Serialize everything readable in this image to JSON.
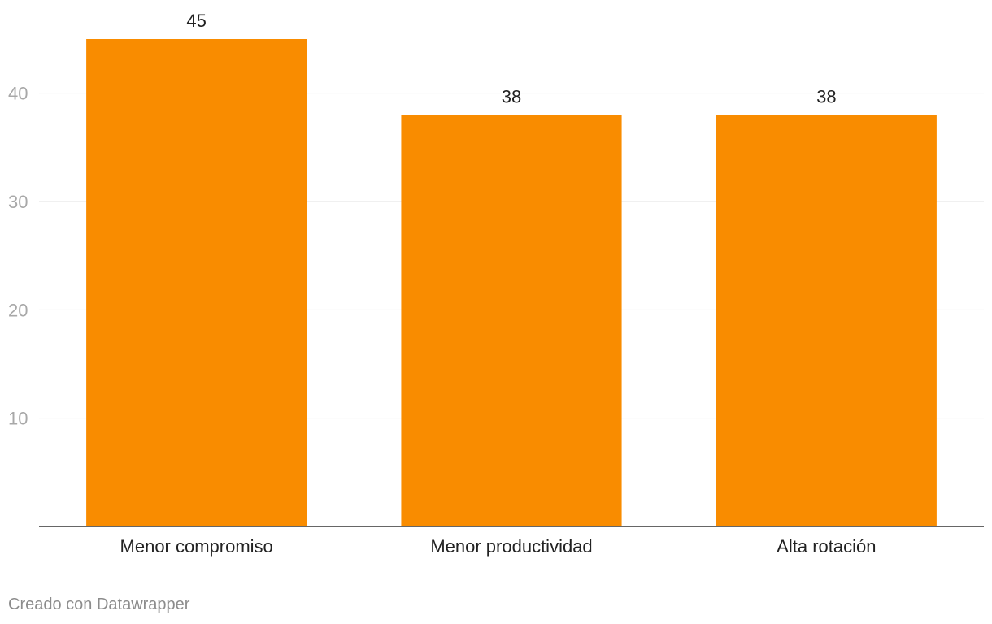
{
  "chart_data": {
    "type": "bar",
    "categories": [
      "Menor compromiso",
      "Menor productividad",
      "Alta rotación"
    ],
    "values": [
      45,
      38,
      38
    ],
    "data_labels": [
      "45",
      "38",
      "38"
    ],
    "yticks": [
      10,
      20,
      30,
      40
    ],
    "ylim": [
      0,
      45
    ],
    "grid": true,
    "bar_color": "#f98c00",
    "title": "",
    "xlabel": "",
    "ylabel": ""
  },
  "footer": {
    "credit": "Creado con Datawrapper"
  }
}
